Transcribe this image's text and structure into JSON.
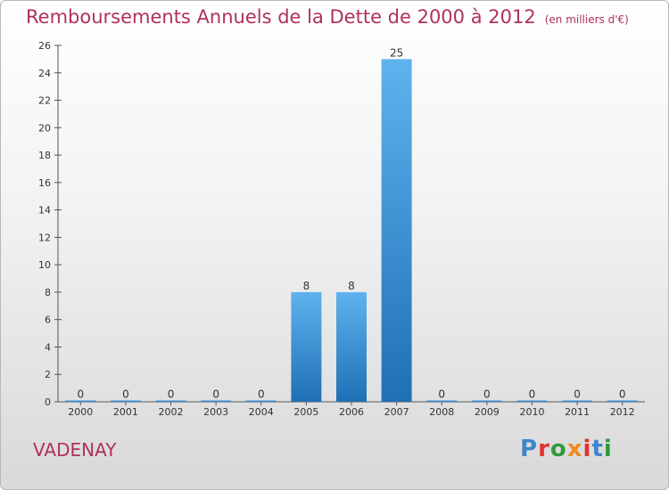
{
  "header": {
    "title": "Remboursements Annuels de la Dette de 2000 à 2012",
    "unit": "(en milliers d'€)"
  },
  "commune": "VADENAY",
  "logo": {
    "text": "Proxiti",
    "colors": [
      "#3e86c9",
      "#e2322f",
      "#2e9c3d",
      "#f08b1f",
      "#e2322f",
      "#3e86c9",
      "#2e9c3d"
    ]
  },
  "chart_data": {
    "type": "bar",
    "title": "Remboursements Annuels de la Dette de 2000 à 2012",
    "ylabel": "en milliers d'€",
    "xlabel": "",
    "categories": [
      "2000",
      "2001",
      "2002",
      "2003",
      "2004",
      "2005",
      "2006",
      "2007",
      "2008",
      "2009",
      "2010",
      "2011",
      "2012"
    ],
    "values": [
      0,
      0,
      0,
      0,
      0,
      8,
      8,
      25,
      0,
      0,
      0,
      0,
      0
    ],
    "ylim": [
      0,
      26
    ],
    "yticks": [
      0,
      2,
      4,
      6,
      8,
      10,
      12,
      14,
      16,
      18,
      20,
      22,
      24,
      26
    ],
    "grid": false,
    "bar_color": "#3a8fd6"
  }
}
